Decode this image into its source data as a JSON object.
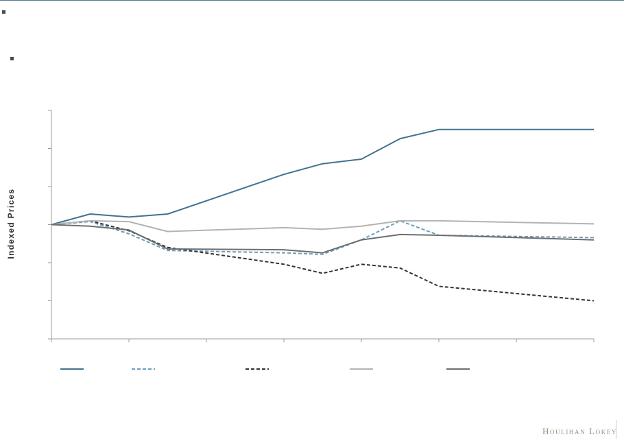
{
  "page": {
    "bullets": [
      "",
      ""
    ],
    "brand": "Houlihan Lokey"
  },
  "chart_data": {
    "type": "line",
    "title": "",
    "xlabel": "",
    "ylabel": "Indexed Prices",
    "x": [
      0,
      1,
      2,
      3,
      4,
      5,
      6,
      7,
      8,
      9,
      10,
      11,
      12,
      13,
      14
    ],
    "xlim": [
      0,
      14
    ],
    "ylim": [
      0,
      3
    ],
    "x_ticks": [
      0,
      2,
      4,
      6,
      8,
      10,
      12,
      14
    ],
    "y_ticks": [
      0,
      0.5,
      1,
      1.5,
      2,
      2.5,
      3
    ],
    "tick_labels_visible": false,
    "grid": false,
    "legend_position": "bottom",
    "series": [
      {
        "color": "#3f7390",
        "dash": "solid",
        "values": [
          1.5,
          1.64,
          1.6,
          1.64,
          null,
          null,
          2.16,
          2.3,
          2.36,
          2.63,
          2.75,
          null,
          null,
          null,
          2.75
        ]
      },
      {
        "color": "#6a9dbf",
        "dash": "dashed",
        "values": [
          1.5,
          1.54,
          1.38,
          1.16,
          null,
          null,
          1.13,
          1.11,
          1.3,
          1.55,
          1.36,
          null,
          null,
          null,
          1.33
        ]
      },
      {
        "color": "#2f3338",
        "dash": "dashed",
        "values": [
          1.5,
          1.55,
          1.42,
          1.2,
          null,
          null,
          0.98,
          0.86,
          0.98,
          0.93,
          0.69,
          null,
          null,
          null,
          0.5
        ]
      },
      {
        "color": "#b3b3b3",
        "dash": "solid",
        "values": [
          1.5,
          1.55,
          1.54,
          1.41,
          null,
          null,
          1.46,
          1.44,
          1.48,
          1.55,
          1.55,
          null,
          null,
          null,
          1.51
        ]
      },
      {
        "color": "#6b6f72",
        "dash": "solid",
        "values": [
          1.5,
          1.48,
          1.43,
          1.18,
          null,
          null,
          1.17,
          1.13,
          1.3,
          1.37,
          1.36,
          null,
          null,
          null,
          1.3
        ]
      }
    ]
  }
}
